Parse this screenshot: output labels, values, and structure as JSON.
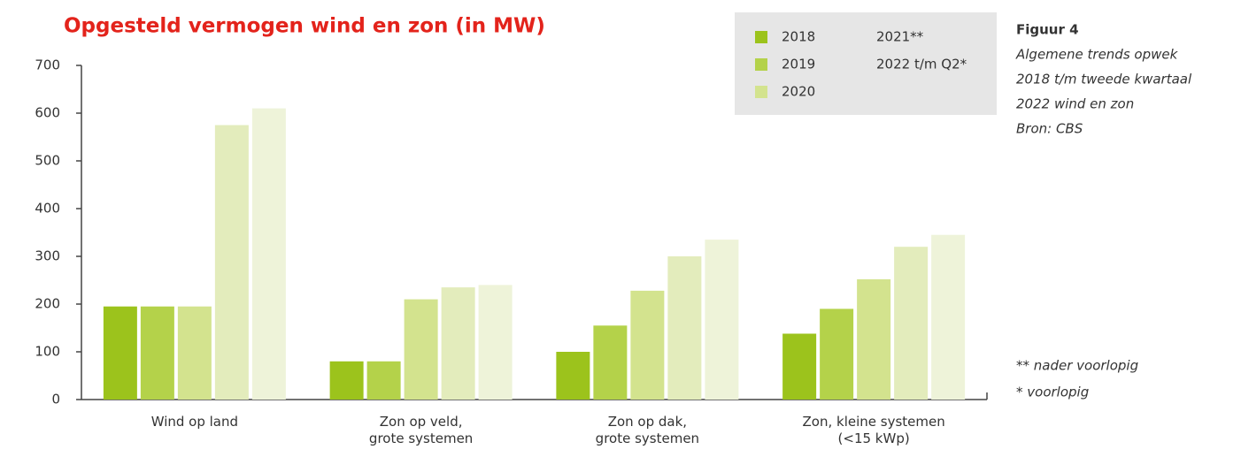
{
  "chart_data": {
    "type": "bar",
    "title": "Opgesteld vermogen wind en zon (in MW)",
    "categories": [
      "Wind op land",
      "Zon op veld,\ngrote systemen",
      "Zon op dak,\ngrote systemen",
      "Zon, kleine systemen\n(<15 kWp)"
    ],
    "series": [
      {
        "name": "2018",
        "color": "#9cc31c",
        "values": [
          195,
          80,
          100,
          138
        ]
      },
      {
        "name": "2019",
        "color": "#b4d24a",
        "values": [
          195,
          80,
          155,
          190
        ]
      },
      {
        "name": "2020",
        "color": "#d3e38e",
        "values": [
          195,
          210,
          228,
          252
        ]
      },
      {
        "name": "2021**",
        "color": "#e3ecbc",
        "values": [
          575,
          235,
          300,
          320
        ]
      },
      {
        "name": "2022 t/m Q2*",
        "color": "#eef3d9",
        "values": [
          610,
          240,
          335,
          345
        ]
      }
    ],
    "ylim": [
      0,
      700
    ],
    "yticks": [
      0,
      100,
      200,
      300,
      400,
      500,
      600,
      700
    ],
    "side_note": {
      "heading": "Figuur 4",
      "lines": [
        "Algemene trends opwek",
        "2018 t/m tweede kwartaal",
        "2022 wind en zon",
        "Bron: CBS"
      ]
    },
    "footnotes": [
      "** nader voorlopig",
      "* voorlopig"
    ]
  }
}
